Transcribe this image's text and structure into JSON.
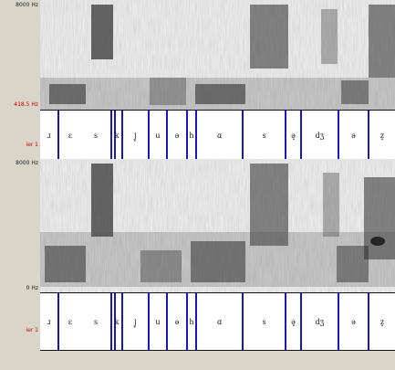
{
  "panels": [
    {
      "freq_top": "8000 Hz",
      "freq_bottom": "418.5 Hz",
      "tier_label": "ier 1"
    },
    {
      "freq_top": "8000 Hz",
      "freq_bottom": "0 Hz",
      "tier_label": "ier 1"
    }
  ],
  "segments": [
    "ɹ",
    "ɛ",
    "s",
    "k",
    "j̥",
    "u",
    "ə",
    "h",
    "ɑ",
    "s",
    "ə̥",
    "dʒ",
    "ə",
    "z̥"
  ],
  "colors": {
    "background": "#d9d6c9",
    "boundary": "#1a14c8",
    "hz_red": "#d10000"
  }
}
